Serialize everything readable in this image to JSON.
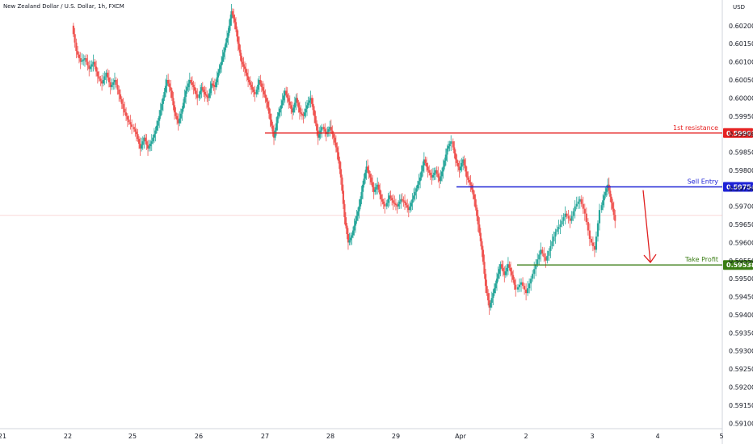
{
  "header": {
    "title": "New Zealand Dollar / U.S. Dollar, 1h, FXCM",
    "currency": "USD"
  },
  "colors": {
    "up": "#26a69a",
    "down": "#ef5350",
    "resistance": "#e62222",
    "entry": "#1e22d6",
    "profit": "#3a7d14",
    "arrow": "#e02020",
    "axis": "#d1d4dc",
    "current_line": "#f4b2b0"
  },
  "chart_data": {
    "type": "candlestick",
    "symbol": "NZD/USD",
    "timeframe": "1h",
    "ylim": [
      0.59085,
      0.60251
    ],
    "y_ticks": [
      "0.60200",
      "0.60150",
      "0.60100",
      "0.60050",
      "0.60000",
      "0.59950",
      "0.59900",
      "0.59850",
      "0.59800",
      "0.59750",
      "0.59700",
      "0.59650",
      "0.59600",
      "0.59550",
      "0.59500",
      "0.59450",
      "0.59400",
      "0.59350",
      "0.59300",
      "0.59250",
      "0.59200",
      "0.59150",
      "0.59100"
    ],
    "x_ticks": [
      "21",
      "22",
      "25",
      "26",
      "27",
      "28",
      "29",
      "Apr",
      "2",
      "3",
      "4",
      "5"
    ],
    "current_price": 0.59675,
    "levels": [
      {
        "key": "resistance",
        "label": "1st resistance",
        "value": "0.59903",
        "price": 0.59903
      },
      {
        "key": "entry",
        "label": "Sell Entry",
        "value": "0.59754",
        "price": 0.59754
      },
      {
        "key": "profit",
        "label": "Take Profit",
        "value": "0.59538",
        "price": 0.59538
      }
    ],
    "arrow": {
      "from_price": 0.59745,
      "to_price": 0.59545,
      "direction": "down"
    },
    "series": [
      {
        "session": "22",
        "points": [
          [
            0.602,
            0.6013
          ],
          [
            0.6013,
            0.601
          ],
          [
            0.601,
            0.6011
          ],
          [
            0.6011,
            0.6008
          ],
          [
            0.6008,
            0.601
          ],
          [
            0.601,
            0.6006
          ],
          [
            0.6006,
            0.6004
          ],
          [
            0.6004,
            0.6007
          ],
          [
            0.6007,
            0.6003
          ],
          [
            0.6003,
            0.6005
          ],
          [
            0.6005,
            0.6001
          ],
          [
            0.6001,
            0.5997
          ],
          [
            0.5997,
            0.5994
          ],
          [
            0.5994,
            0.5992
          ]
        ]
      },
      {
        "session": "25",
        "points": [
          [
            0.5992,
            0.599
          ],
          [
            0.599,
            0.5986
          ],
          [
            0.5986,
            0.5989
          ],
          [
            0.5989,
            0.5986
          ],
          [
            0.5986,
            0.5988
          ],
          [
            0.5988,
            0.5991
          ],
          [
            0.5991,
            0.5995
          ],
          [
            0.5995,
            0.6
          ],
          [
            0.6,
            0.6005
          ],
          [
            0.6005,
            0.6002
          ],
          [
            0.6002,
            0.5996
          ],
          [
            0.5996,
            0.5993
          ],
          [
            0.5993,
            0.5997
          ],
          [
            0.5997,
            0.6002
          ],
          [
            0.6002,
            0.6005
          ],
          [
            0.6005,
            0.6003
          ],
          [
            0.6003,
            0.6
          ]
        ]
      },
      {
        "session": "26",
        "points": [
          [
            0.6,
            0.6003
          ],
          [
            0.6003,
            0.6001
          ],
          [
            0.6001,
            0.6
          ],
          [
            0.6,
            0.6004
          ],
          [
            0.6004,
            0.6003
          ],
          [
            0.6003,
            0.6007
          ],
          [
            0.6007,
            0.601
          ],
          [
            0.601,
            0.6014
          ],
          [
            0.6014,
            0.6018
          ],
          [
            0.6018,
            0.6024
          ],
          [
            0.6024,
            0.6021
          ],
          [
            0.6021,
            0.6015
          ],
          [
            0.6015,
            0.601
          ],
          [
            0.601,
            0.6008
          ],
          [
            0.6008,
            0.6005
          ],
          [
            0.6005,
            0.6003
          ],
          [
            0.6003,
            0.6001
          ]
        ]
      },
      {
        "session": "27",
        "points": [
          [
            0.6001,
            0.6005
          ],
          [
            0.6005,
            0.6002
          ],
          [
            0.6002,
            0.5999
          ],
          [
            0.5999,
            0.5994
          ],
          [
            0.5994,
            0.5989
          ],
          [
            0.5989,
            0.5995
          ],
          [
            0.5995,
            0.5998
          ],
          [
            0.5998,
            0.6002
          ],
          [
            0.6002,
            0.5999
          ],
          [
            0.5999,
            0.5996
          ],
          [
            0.5996,
            0.6
          ],
          [
            0.6,
            0.5996
          ],
          [
            0.5996,
            0.5995
          ],
          [
            0.5995,
            0.5998
          ],
          [
            0.5998,
            0.6
          ],
          [
            0.6,
            0.5995
          ],
          [
            0.5995,
            0.5989
          ],
          [
            0.5989,
            0.5992
          ]
        ]
      },
      {
        "session": "28",
        "points": [
          [
            0.5992,
            0.599
          ],
          [
            0.599,
            0.5992
          ],
          [
            0.5992,
            0.5989
          ],
          [
            0.5989,
            0.5985
          ],
          [
            0.5985,
            0.5978
          ],
          [
            0.5978,
            0.5967
          ],
          [
            0.5967,
            0.596
          ],
          [
            0.596,
            0.5962
          ],
          [
            0.5962,
            0.5966
          ],
          [
            0.5966,
            0.597
          ],
          [
            0.597,
            0.5976
          ],
          [
            0.5976,
            0.5981
          ],
          [
            0.5981,
            0.5978
          ],
          [
            0.5978,
            0.5974
          ],
          [
            0.5974,
            0.5976
          ],
          [
            0.5976,
            0.5972
          ],
          [
            0.5972,
            0.597
          ]
        ]
      },
      {
        "session": "29",
        "points": [
          [
            0.597,
            0.5973
          ],
          [
            0.5973,
            0.5971
          ],
          [
            0.5971,
            0.597
          ],
          [
            0.597,
            0.5972
          ],
          [
            0.5972,
            0.5971
          ],
          [
            0.5971,
            0.5969
          ],
          [
            0.5969,
            0.5972
          ],
          [
            0.5972,
            0.5975
          ],
          [
            0.5975,
            0.5978
          ],
          [
            0.5978,
            0.5983
          ],
          [
            0.5983,
            0.598
          ],
          [
            0.598,
            0.5978
          ],
          [
            0.5978,
            0.598
          ],
          [
            0.598,
            0.5977
          ],
          [
            0.5977,
            0.5981
          ],
          [
            0.5981,
            0.5986
          ],
          [
            0.5986,
            0.5988
          ]
        ]
      },
      {
        "session": "Apr",
        "points": [
          [
            0.5988,
            0.5983
          ],
          [
            0.5983,
            0.598
          ],
          [
            0.598,
            0.5983
          ],
          [
            0.5983,
            0.5978
          ],
          [
            0.5978,
            0.5976
          ],
          [
            0.5976,
            0.5972
          ],
          [
            0.5972,
            0.5965
          ],
          [
            0.5965,
            0.5958
          ],
          [
            0.5958,
            0.5948
          ],
          [
            0.5948,
            0.5942
          ],
          [
            0.5942,
            0.5946
          ],
          [
            0.5946,
            0.595
          ],
          [
            0.595,
            0.5954
          ],
          [
            0.5954,
            0.5951
          ],
          [
            0.5951,
            0.5954
          ],
          [
            0.5954,
            0.5951
          ],
          [
            0.5951,
            0.5947
          ]
        ]
      },
      {
        "session": "2",
        "points": [
          [
            0.5947,
            0.5949
          ],
          [
            0.5949,
            0.5946
          ],
          [
            0.5946,
            0.595
          ],
          [
            0.595,
            0.5954
          ],
          [
            0.5954,
            0.5958
          ],
          [
            0.5958,
            0.5955
          ],
          [
            0.5955,
            0.5959
          ],
          [
            0.5959,
            0.5963
          ],
          [
            0.5963,
            0.5965
          ],
          [
            0.5965,
            0.5968
          ],
          [
            0.5968,
            0.5966
          ],
          [
            0.5966,
            0.597
          ],
          [
            0.597,
            0.5972
          ],
          [
            0.5972,
            0.5968
          ],
          [
            0.5968,
            0.5961
          ],
          [
            0.5961,
            0.5958
          ],
          [
            0.5958,
            0.5969
          ]
        ]
      },
      {
        "session": "3",
        "points": [
          [
            0.5969,
            0.5973
          ],
          [
            0.5973,
            0.5976
          ],
          [
            0.5976,
            0.5971
          ],
          [
            0.5971,
            0.5966
          ]
        ]
      }
    ]
  }
}
